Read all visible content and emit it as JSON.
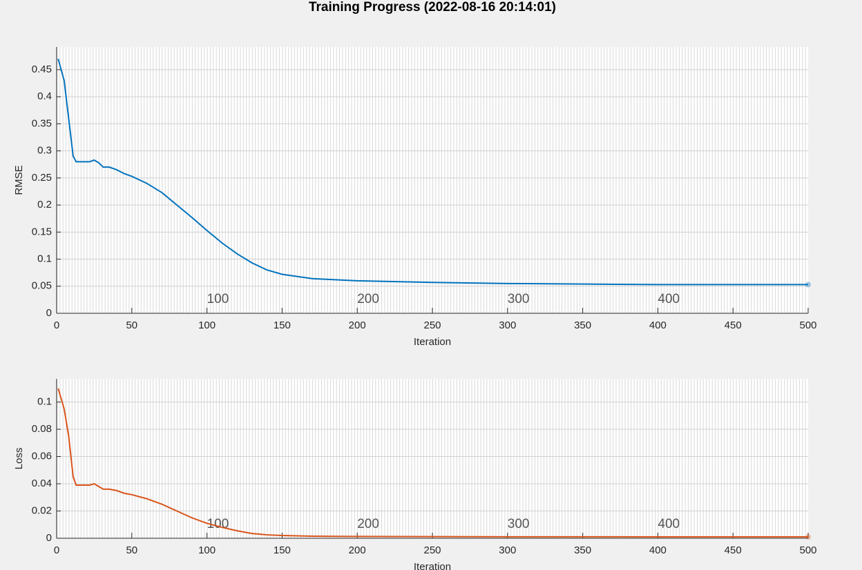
{
  "title": "Training Progress (2022-08-16 20:14:01)",
  "chart_data": [
    {
      "type": "line",
      "xlabel": "Iteration",
      "ylabel": "RMSE",
      "x": [
        1,
        5,
        8,
        11,
        13,
        18,
        22,
        25,
        28,
        31,
        35,
        40,
        45,
        50,
        60,
        70,
        80,
        90,
        100,
        110,
        120,
        130,
        140,
        150,
        170,
        200,
        250,
        300,
        350,
        400,
        450,
        500
      ],
      "series": [
        {
          "color": "#0072bd",
          "values": [
            0.47,
            0.43,
            0.36,
            0.29,
            0.28,
            0.28,
            0.28,
            0.283,
            0.278,
            0.27,
            0.27,
            0.265,
            0.258,
            0.253,
            0.24,
            0.223,
            0.2,
            0.177,
            0.153,
            0.13,
            0.11,
            0.093,
            0.08,
            0.072,
            0.064,
            0.06,
            0.057,
            0.055,
            0.054,
            0.053,
            0.053,
            0.053
          ]
        }
      ],
      "xlim": [
        0,
        500
      ],
      "xticks": [
        0,
        50,
        100,
        150,
        200,
        250,
        300,
        350,
        400,
        450,
        500
      ],
      "ylim": [
        0,
        0.492
      ],
      "yticks": [
        0,
        0.05,
        0.1,
        0.15,
        0.2,
        0.25,
        0.3,
        0.35,
        0.4,
        0.45
      ],
      "epoch_ticks": [
        100,
        200,
        300,
        400
      ],
      "grid": true
    },
    {
      "type": "line",
      "xlabel": "Iteration",
      "ylabel": "Loss",
      "x": [
        1,
        5,
        8,
        11,
        13,
        18,
        22,
        25,
        28,
        31,
        35,
        40,
        45,
        50,
        60,
        70,
        80,
        90,
        100,
        110,
        120,
        130,
        140,
        150,
        170,
        200,
        250,
        300,
        350,
        400,
        450,
        500
      ],
      "series": [
        {
          "color": "#d95319",
          "values": [
            0.11,
            0.095,
            0.075,
            0.045,
            0.039,
            0.039,
            0.039,
            0.04,
            0.038,
            0.036,
            0.036,
            0.035,
            0.033,
            0.032,
            0.029,
            0.025,
            0.02,
            0.015,
            0.011,
            0.008,
            0.0055,
            0.0035,
            0.0025,
            0.002,
            0.0015,
            0.0013,
            0.0012,
            0.0011,
            0.0011,
            0.001,
            0.001,
            0.001
          ]
        }
      ],
      "xlim": [
        0,
        500
      ],
      "xticks": [
        0,
        50,
        100,
        150,
        200,
        250,
        300,
        350,
        400,
        450,
        500
      ],
      "ylim": [
        0,
        0.117
      ],
      "yticks": [
        0,
        0.02,
        0.04,
        0.06,
        0.08,
        0.1
      ],
      "epoch_ticks": [
        100,
        200,
        300,
        400
      ],
      "grid": true
    }
  ]
}
